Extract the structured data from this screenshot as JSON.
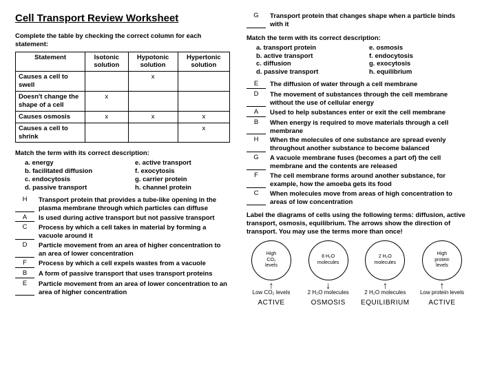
{
  "title": "Cell Transport Review Worksheet",
  "left": {
    "table_instr": "Complete the table by checking the correct column for each statement:",
    "cols": [
      "Statement",
      "Isotonic solution",
      "Hypotonic solution",
      "Hypertonic solution"
    ],
    "rows": [
      {
        "s": "Causes a cell to swell",
        "iso": "",
        "hypo": "x",
        "hyper": ""
      },
      {
        "s": "Doesn't change the shape of a cell",
        "iso": "x",
        "hypo": "",
        "hyper": ""
      },
      {
        "s": "Causes osmosis",
        "iso": "x",
        "hypo": "x",
        "hyper": "x"
      },
      {
        "s": "Causes a cell to shrink",
        "iso": "",
        "hypo": "",
        "hyper": "x"
      }
    ],
    "match_title": "Match the term with its correct description:",
    "terms_l": [
      "a.  energy",
      "b.  facilitated diffusion",
      "c.  endocytosis",
      "d.  passive transport"
    ],
    "terms_r": [
      "e. active transport",
      "f. exocytosis",
      "g. carrier protein",
      "h. channel protein"
    ],
    "answers": [
      {
        "a": "H",
        "d": "Transport protein that provides a tube-like opening in the plasma membrane through which particles can diffuse"
      },
      {
        "a": "A",
        "d": "Is used during active transport but not passive transport"
      },
      {
        "a": "C",
        "d": "Process by which a cell takes in material by forming a vacuole around it"
      },
      {
        "a": "D",
        "d": "Particle movement from an area of higher concentration to an area of lower concentration"
      },
      {
        "a": "F",
        "d": "Process by which a cell expels wastes from a vacuole"
      },
      {
        "a": "B",
        "d": "A form of passive transport that uses transport proteins"
      },
      {
        "a": "E",
        "d": "Particle movement from an area of lower concentration to an area of higher concentration"
      }
    ]
  },
  "right": {
    "top": {
      "a": "G",
      "d": "Transport protein that changes shape when a particle binds with it"
    },
    "match_title": "Match the term with its correct description:",
    "terms_l": [
      "a.  transport protein",
      "b.  active transport",
      "c.  diffusion",
      "d.  passive transport"
    ],
    "terms_r": [
      "e. osmosis",
      "f. endocytosis",
      "g. exocytosis",
      "h. equilibrium"
    ],
    "answers": [
      {
        "a": "E",
        "d": "The diffusion of water through a cell membrane"
      },
      {
        "a": "D",
        "d": "The movement of substances through the cell membrane without the use of cellular energy"
      },
      {
        "a": "A",
        "d": "Used to help substances enter or exit the cell membrane"
      },
      {
        "a": "B",
        "d": "When energy is required to move materials through a cell membrane"
      },
      {
        "a": "H",
        "d": "When the molecules of one substance are spread evenly throughout another substance to become balanced"
      },
      {
        "a": "G",
        "d": "A vacuole membrane fuses (becomes a part of) the cell membrane and the contents are released"
      },
      {
        "a": "F",
        "d": "The cell membrane forms around another substance, for example, how the amoeba gets its food"
      },
      {
        "a": "C",
        "d": "When molecules move from areas of high concentration to areas of low concentration"
      }
    ],
    "diagram_instr": "Label the diagrams of cells using the following terms: diffusion, active transport, osmosis, equilibrium. The arrows show the direction of transport.  You may use the terms more than once!",
    "diagrams": [
      {
        "inside_l1": "High",
        "inside_l2": "CO₂",
        "inside_l3": "levels",
        "arrow": "↑",
        "below": "Low CO₂ levels",
        "label": "ACTIVE"
      },
      {
        "inside_l1": "8 H₂O",
        "inside_l2": "molecules",
        "inside_l3": "",
        "arrow": "↓",
        "below": "2 H₂O molecules",
        "label": "OSMOSIS"
      },
      {
        "inside_l1": "2 H₂O",
        "inside_l2": "molecules",
        "inside_l3": "",
        "arrow": "↑",
        "below": "2 H₂O molecules",
        "label": "EQUILIBRIUM"
      },
      {
        "inside_l1": "High",
        "inside_l2": "protein",
        "inside_l3": "levels",
        "arrow": "↑",
        "below": "Low protein levels",
        "label": "ACTIVE"
      }
    ]
  }
}
